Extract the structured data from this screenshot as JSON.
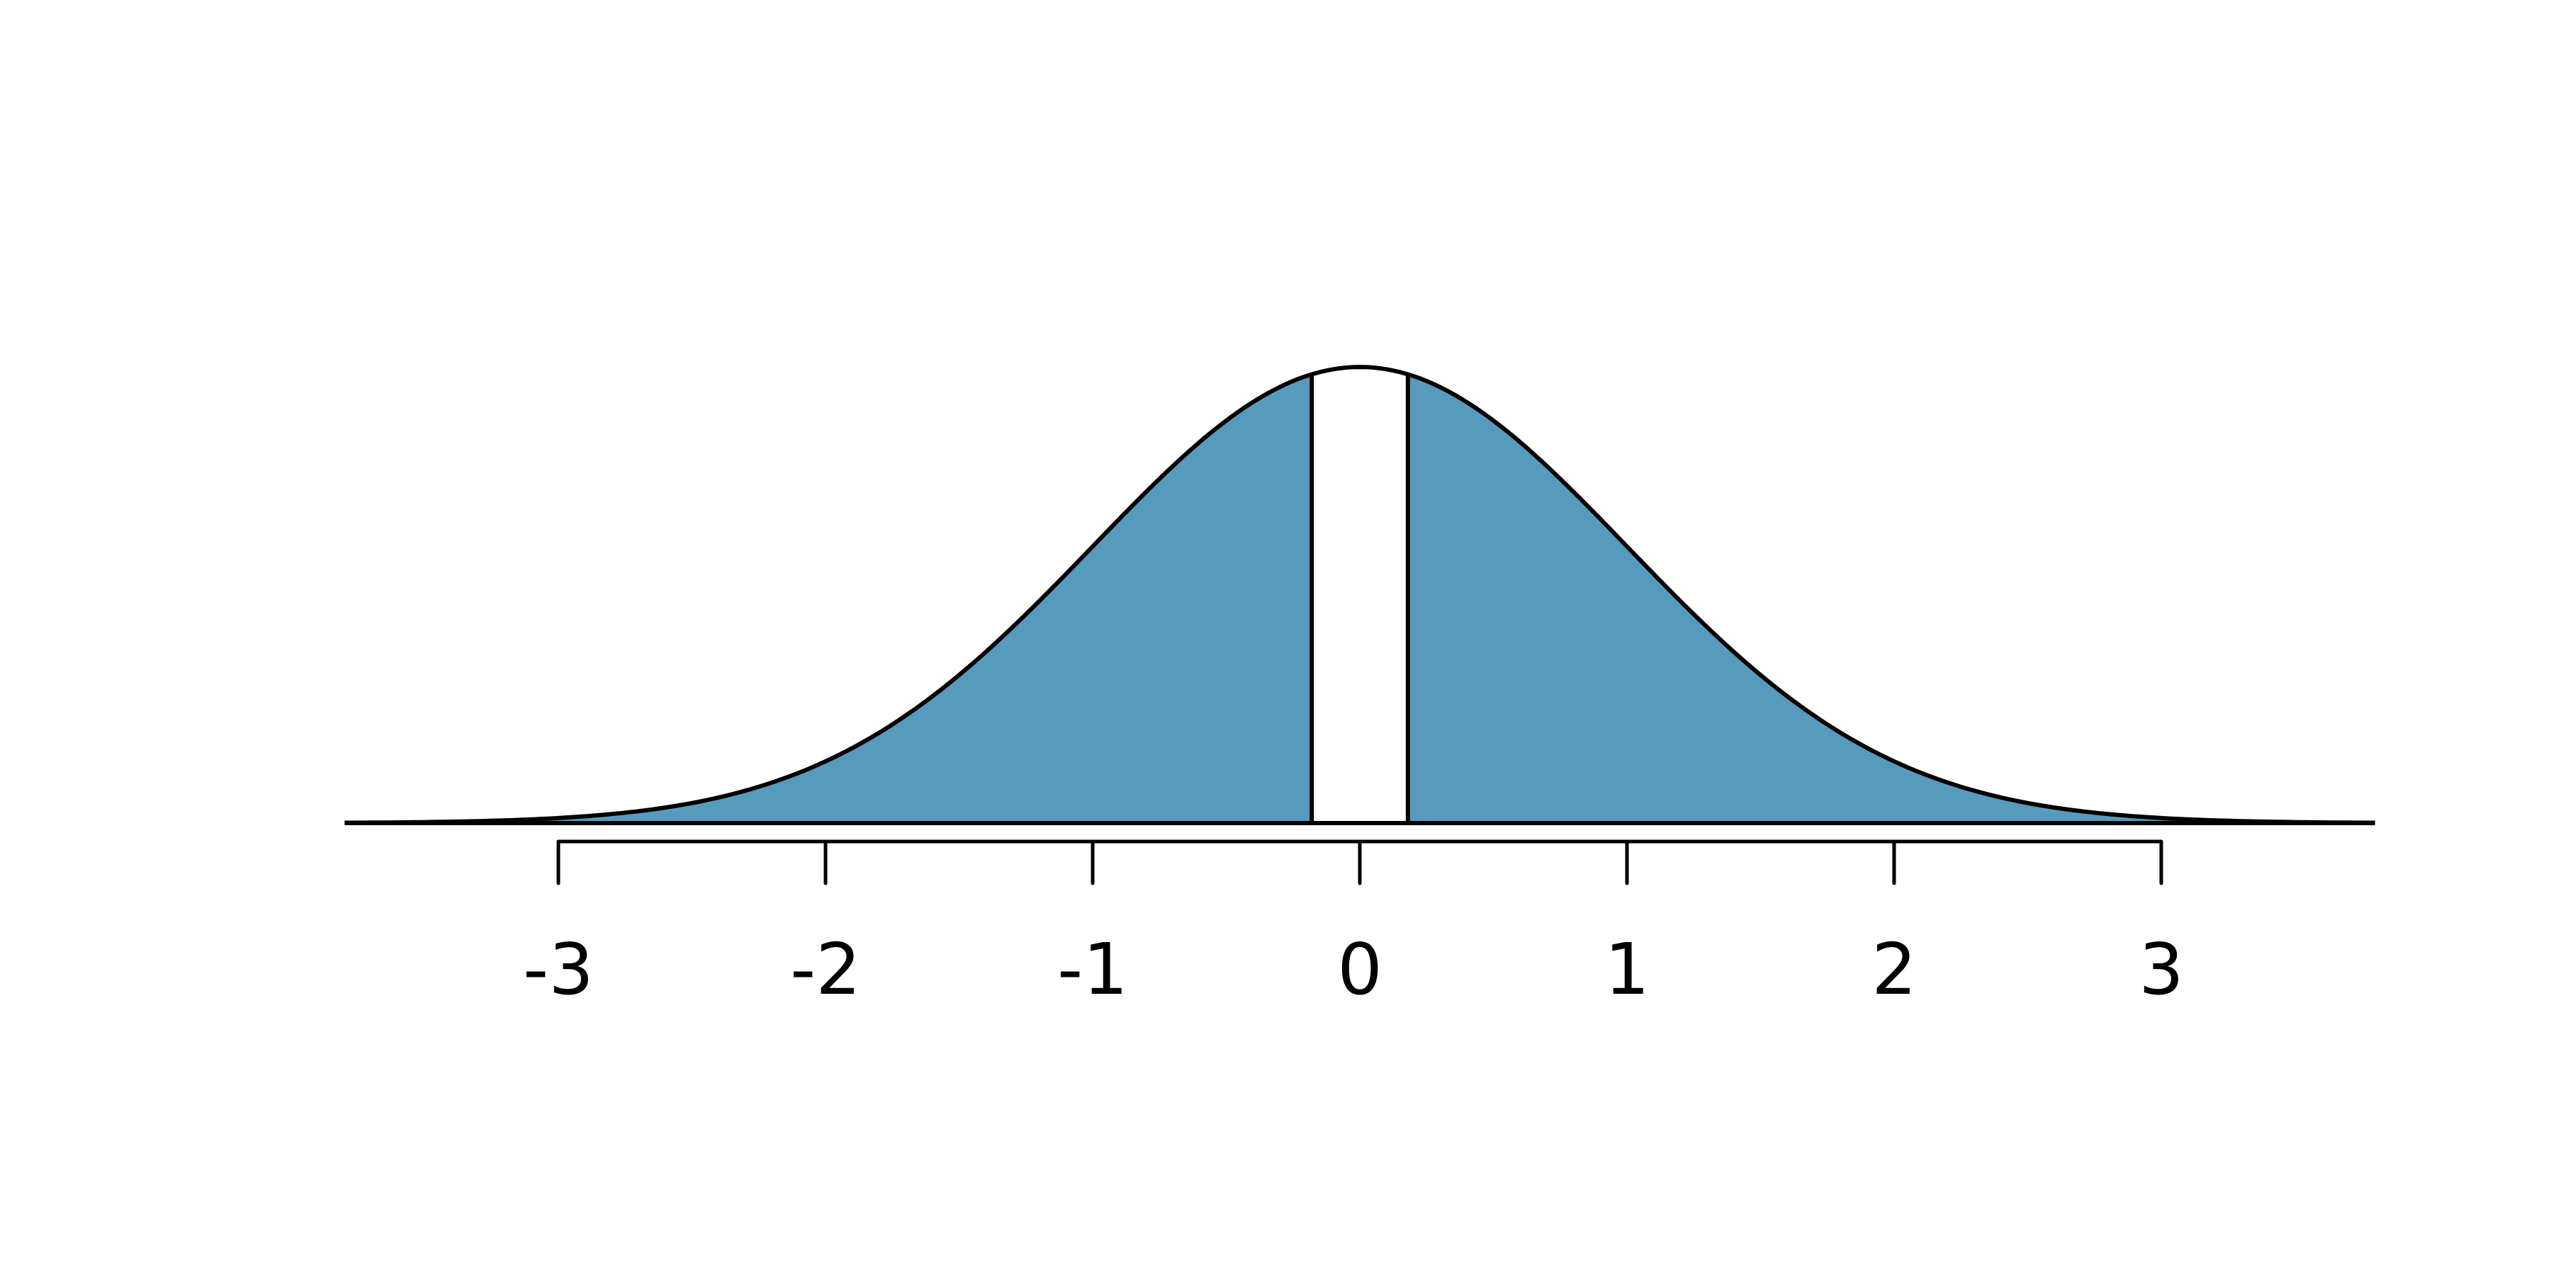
{
  "chart_data": {
    "type": "area",
    "title": "",
    "xlabel": "",
    "ylabel": "",
    "distribution": "standard normal density",
    "curve_x_range": [
      -3.8,
      3.8
    ],
    "shaded_regions": [
      [
        -3.8,
        -0.18
      ],
      [
        0.18,
        3.8
      ]
    ],
    "unshaded_region": [
      -0.18,
      0.18
    ],
    "xticks": [
      -3,
      -2,
      -1,
      0,
      1,
      2,
      3
    ],
    "xtick_labels": [
      "-3",
      "-2",
      "-1",
      "0",
      "1",
      "2",
      "3"
    ],
    "grid": false,
    "colors": {
      "fill": "#569bbd",
      "line": "#000000",
      "background": "#ffffff"
    }
  }
}
